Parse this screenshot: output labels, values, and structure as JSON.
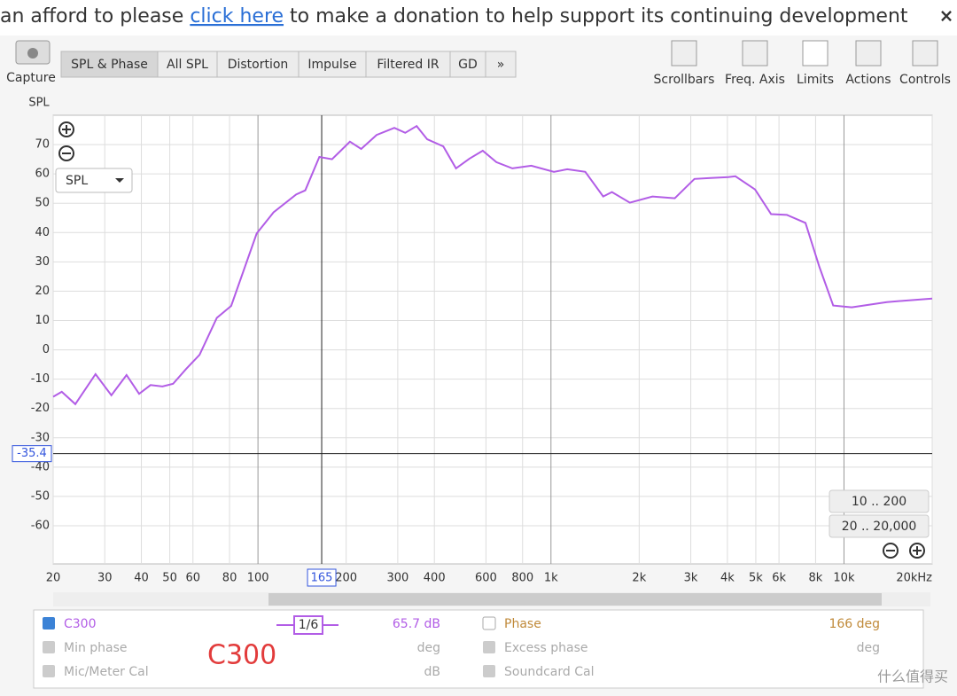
{
  "banner": {
    "text_before": "an afford to please",
    "link": "click here",
    "text_after": "to make a donation to help support its continuing development"
  },
  "toolbar": {
    "capture": "Capture",
    "tabs": [
      "SPL & Phase",
      "All SPL",
      "Distortion",
      "Impulse",
      "Filtered IR",
      "GD",
      "»"
    ],
    "buttons": [
      "Scrollbars",
      "Freq. Axis",
      "Limits",
      "Actions",
      "Controls"
    ]
  },
  "chart_data": {
    "type": "line",
    "y_label": "SPL",
    "dropdown": "SPL",
    "xlog": true,
    "x": [
      20,
      21.4,
      23.8,
      27.9,
      31.6,
      35.6,
      39.3,
      43,
      47.2,
      51.3,
      56.9,
      63.2,
      72.4,
      81,
      99,
      113,
      135,
      145,
      162,
      179,
      206,
      225,
      254,
      292,
      318,
      348,
      378,
      429,
      474,
      527,
      585,
      651,
      738,
      857,
      1023,
      1137,
      1309,
      1507,
      1615,
      1858,
      2220,
      2646,
      3087,
      3508,
      4030,
      4260,
      4970,
      5640,
      6390,
      7390,
      8240,
      9190,
      10630,
      14000,
      20000
    ],
    "series": [
      {
        "name": "C300",
        "color": "#b25de6",
        "values": [
          -16,
          -14.3,
          -18.5,
          -8.3,
          -15.5,
          -8.6,
          -15,
          -12,
          -12.5,
          -11.6,
          -6.5,
          -1.7,
          10.9,
          15,
          39.7,
          46.9,
          53,
          54.4,
          65.8,
          65,
          71,
          68.5,
          73.3,
          75.7,
          74,
          76.3,
          71.8,
          69.4,
          61.9,
          65.2,
          67.9,
          64,
          61.9,
          62.8,
          60.7,
          61.6,
          60.7,
          52.3,
          53.8,
          50.2,
          52.3,
          51.7,
          58.3,
          58.6,
          58.9,
          59.2,
          54.7,
          46.3,
          46,
          43.3,
          28.3,
          15.1,
          14.5,
          16.3,
          17.5
        ]
      }
    ],
    "xlim": [
      20,
      20000
    ],
    "ylim": [
      -73,
      80
    ],
    "xticks": [
      20,
      30,
      40,
      50,
      60,
      80,
      100,
      200,
      300,
      400,
      600,
      800,
      {
        "value": 1000,
        "label": "1k"
      },
      {
        "value": 2000,
        "label": "2k"
      },
      {
        "value": 3000,
        "label": "3k"
      },
      {
        "value": 4000,
        "label": "4k"
      },
      {
        "value": 5000,
        "label": "5k"
      },
      {
        "value": 6000,
        "label": "6k"
      },
      {
        "value": 8000,
        "label": "8k"
      },
      {
        "value": 10000,
        "label": "10k"
      },
      {
        "value": 20000,
        "label": "20kHz"
      }
    ],
    "yticks": [
      -60,
      -50,
      -40,
      -30,
      -20,
      -10,
      0,
      10,
      20,
      30,
      40,
      50,
      60,
      70
    ],
    "grid": true,
    "cursor": {
      "x": 165,
      "y": -35.4
    },
    "zoom_presets": [
      "10 .. 200",
      "20 .. 20,000"
    ]
  },
  "panel": {
    "smoothing": "1/6",
    "spl_readout": "65.7 dB",
    "phase": "Phase",
    "phase_readout": "166 deg",
    "min_phase": "Min phase",
    "min_phase_unit": "deg",
    "excess_phase": "Excess phase",
    "excess_phase_unit": "deg",
    "mic_cal": "Mic/Meter Cal",
    "mic_cal_unit": "dB",
    "soundcard_cal": "Soundcard Cal",
    "annotation": "C300",
    "watermark": "什么值得买"
  }
}
